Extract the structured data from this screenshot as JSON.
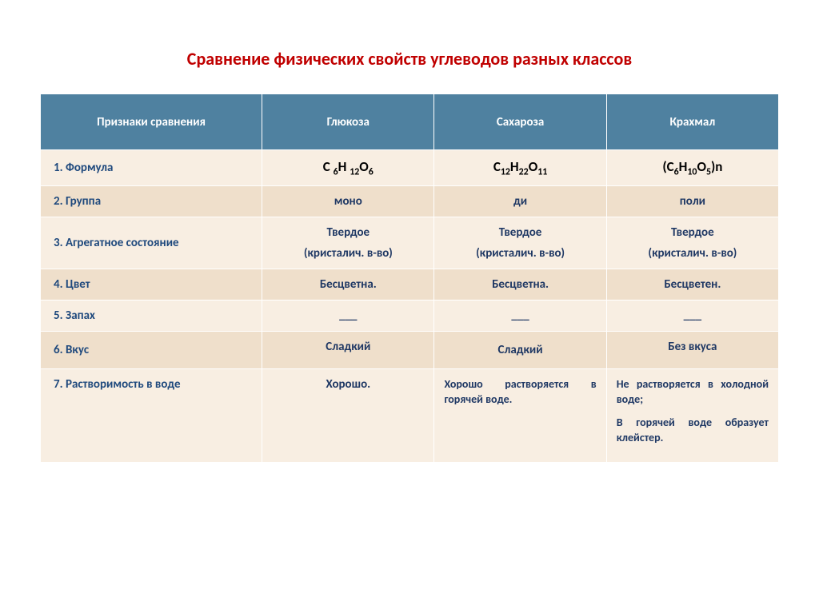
{
  "title": "Сравнение физических свойств углеводов разных классов",
  "headers": {
    "c0": "Признаки сравнения",
    "c1": "Глюкоза",
    "c2": "Сахароза",
    "c3": "Крахмал"
  },
  "rows": {
    "r1": {
      "label": "1.    Формула"
    },
    "r2": {
      "label": "2.    Группа",
      "c1": "моно",
      "c2": "ди",
      "c3": "поли"
    },
    "r3": {
      "label": "3.   Агрегатное состояние",
      "c1a": "Твердое",
      "c1b": "(кристалич. в-во)",
      "c2a": "Твердое",
      "c2b": "(кристалич. в-во)",
      "c3a": "Твердое",
      "c3b": "(кристалич. в-во)"
    },
    "r4": {
      "label": "4.   Цвет",
      "c1": "Бесцветна.",
      "c2": "Бесцветна.",
      "c3": "Бесцветен."
    },
    "r5": {
      "label": "5.   Запах",
      "c1": "___",
      "c2": "___",
      "c3": "___"
    },
    "r6": {
      "label": "6.   Вкус",
      "c1": "Сладкий",
      "c2": "Сладкий",
      "c3": "Без вкуса"
    },
    "r7": {
      "label": "7.   Растворимость в воде",
      "c1": "Хорошо.",
      "c2": "Хорошо растворяется в горячей воде.",
      "c3a": "Не растворяется в холодной воде;",
      "c3b": "В горячей воде образует клейстер."
    }
  },
  "formulas": {
    "f1": "C <sub>6</sub>H <sub>12</sub>O<sub>6</sub>",
    "f2": "C<sub>12</sub>H<sub>22</sub>O<sub>11</sub>",
    "f3": "(C<sub>6</sub>H<sub>10</sub>O<sub>5</sub>)n"
  },
  "colors": {
    "title": "#c00000",
    "header_bg": "#4f81a0",
    "row_light": "#f8eee2",
    "row_dark": "#efdfcb",
    "label_text": "#1f497d"
  }
}
